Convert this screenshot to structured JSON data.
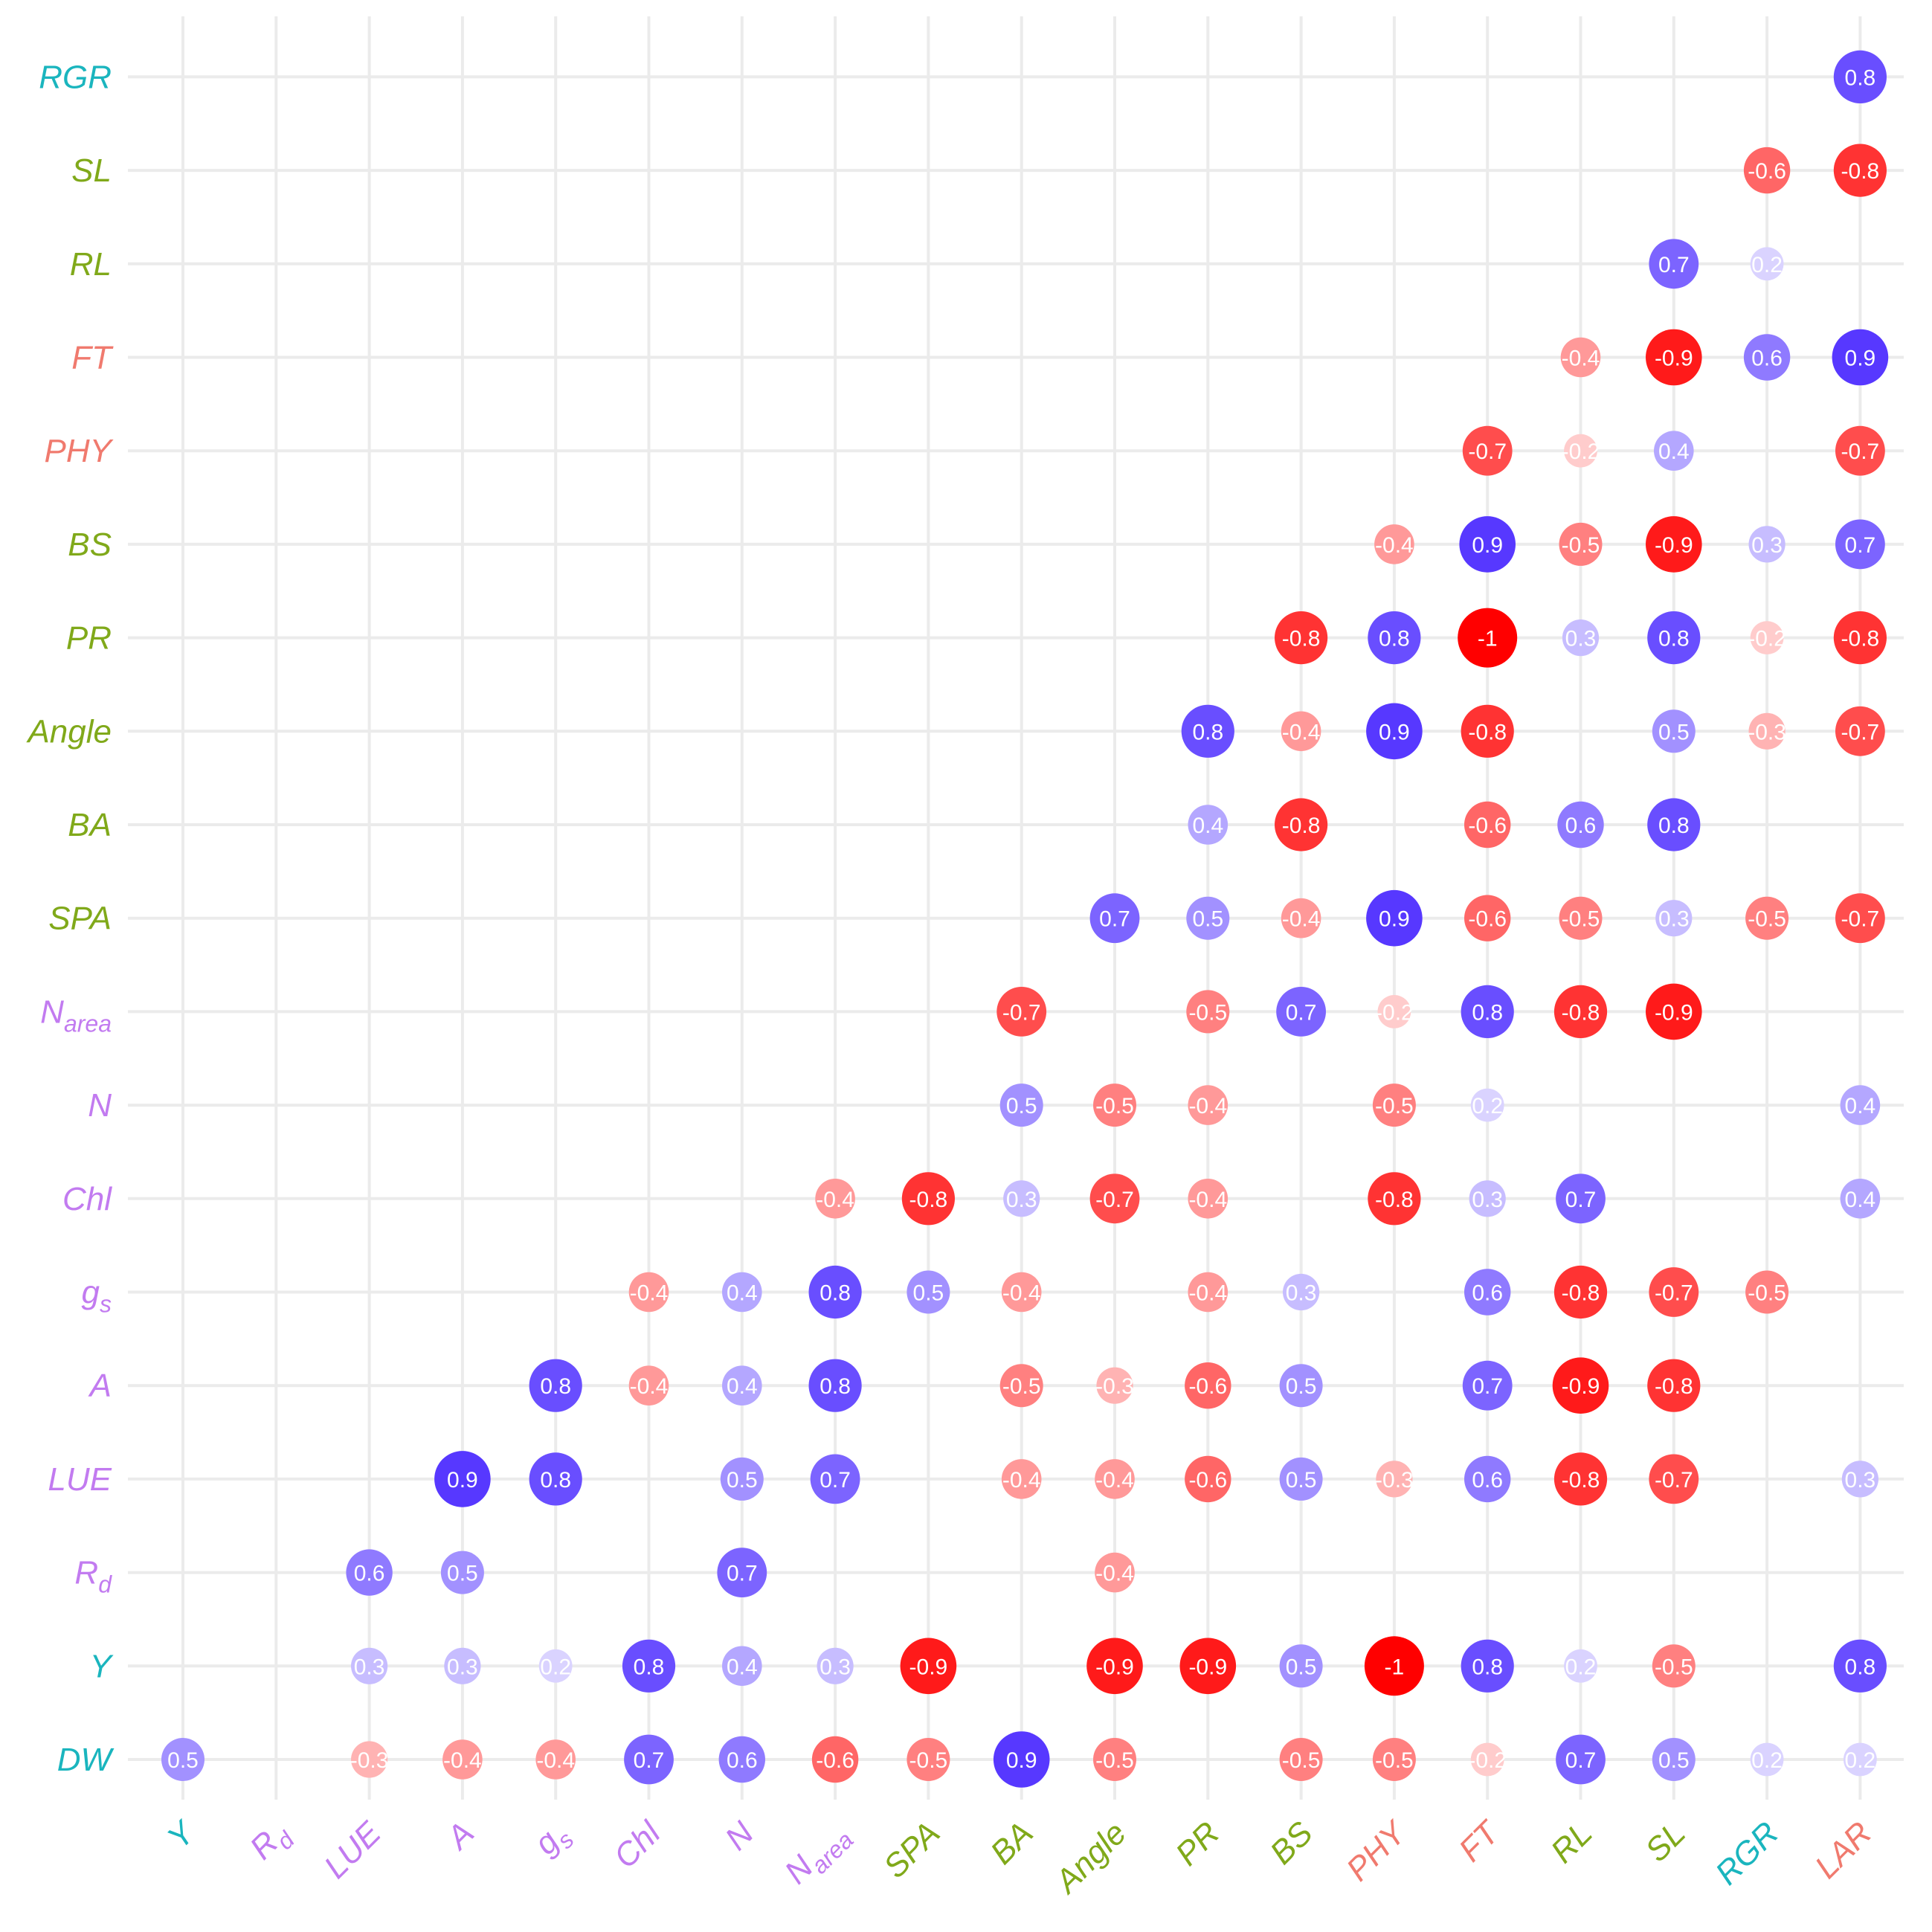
{
  "chart_data": {
    "type": "heatmap",
    "title": "",
    "x_labels": [
      {
        "id": "Y",
        "main": "Y",
        "sub": "",
        "group": "teal"
      },
      {
        "id": "Rd",
        "main": "R",
        "sub": "d",
        "group": "purple"
      },
      {
        "id": "LUE",
        "main": "LUE",
        "sub": "",
        "group": "purple"
      },
      {
        "id": "A",
        "main": "A",
        "sub": "",
        "group": "purple"
      },
      {
        "id": "gs",
        "main": "g",
        "sub": "s",
        "group": "purple"
      },
      {
        "id": "Chl",
        "main": "Chl",
        "sub": "",
        "group": "purple"
      },
      {
        "id": "N",
        "main": "N",
        "sub": "",
        "group": "purple"
      },
      {
        "id": "Narea",
        "main": "N",
        "sub": "area",
        "group": "purple"
      },
      {
        "id": "SPA",
        "main": "SPA",
        "sub": "",
        "group": "green"
      },
      {
        "id": "BA",
        "main": "BA",
        "sub": "",
        "group": "green"
      },
      {
        "id": "Angle",
        "main": "Angle",
        "sub": "",
        "group": "green"
      },
      {
        "id": "PR",
        "main": "PR",
        "sub": "",
        "group": "green"
      },
      {
        "id": "BS",
        "main": "BS",
        "sub": "",
        "group": "green"
      },
      {
        "id": "PHY",
        "main": "PHY",
        "sub": "",
        "group": "salmon"
      },
      {
        "id": "FT",
        "main": "FT",
        "sub": "",
        "group": "salmon"
      },
      {
        "id": "RL",
        "main": "RL",
        "sub": "",
        "group": "green"
      },
      {
        "id": "SL",
        "main": "SL",
        "sub": "",
        "group": "green"
      },
      {
        "id": "RGR",
        "main": "RGR",
        "sub": "",
        "group": "teal"
      },
      {
        "id": "LAR",
        "main": "LAR",
        "sub": "",
        "group": "salmon"
      }
    ],
    "y_labels": [
      {
        "id": "DW",
        "main": "DW",
        "sub": "",
        "group": "teal"
      },
      {
        "id": "Y",
        "main": "Y",
        "sub": "",
        "group": "teal"
      },
      {
        "id": "Rd",
        "main": "R",
        "sub": "d",
        "group": "purple"
      },
      {
        "id": "LUE",
        "main": "LUE",
        "sub": "",
        "group": "purple"
      },
      {
        "id": "A",
        "main": "A",
        "sub": "",
        "group": "purple"
      },
      {
        "id": "gs",
        "main": "g",
        "sub": "s",
        "group": "purple"
      },
      {
        "id": "Chl",
        "main": "Chl",
        "sub": "",
        "group": "purple"
      },
      {
        "id": "N",
        "main": "N",
        "sub": "",
        "group": "purple"
      },
      {
        "id": "Narea",
        "main": "N",
        "sub": "area",
        "group": "purple"
      },
      {
        "id": "SPA",
        "main": "SPA",
        "sub": "",
        "group": "green"
      },
      {
        "id": "BA",
        "main": "BA",
        "sub": "",
        "group": "green"
      },
      {
        "id": "Angle",
        "main": "Angle",
        "sub": "",
        "group": "green"
      },
      {
        "id": "PR",
        "main": "PR",
        "sub": "",
        "group": "green"
      },
      {
        "id": "BS",
        "main": "BS",
        "sub": "",
        "group": "green"
      },
      {
        "id": "PHY",
        "main": "PHY",
        "sub": "",
        "group": "salmon"
      },
      {
        "id": "FT",
        "main": "FT",
        "sub": "",
        "group": "salmon"
      },
      {
        "id": "RL",
        "main": "RL",
        "sub": "",
        "group": "green"
      },
      {
        "id": "SL",
        "main": "SL",
        "sub": "",
        "group": "green"
      },
      {
        "id": "RGR",
        "main": "RGR",
        "sub": "",
        "group": "teal"
      }
    ],
    "group_colors": {
      "teal": "#1ab5be",
      "purple": "#c27bf0",
      "green": "#80a91a",
      "salmon": "#f07a6e"
    },
    "color_scale": {
      "negative": "#ff0000",
      "neutral": "#ffffff",
      "positive": "#4422ff"
    },
    "grid": true,
    "legend": "none",
    "cells": [
      {
        "row": "DW",
        "col": "Y",
        "value": 0.5
      },
      {
        "row": "DW",
        "col": "LUE",
        "value": -0.3
      },
      {
        "row": "DW",
        "col": "A",
        "value": -0.4
      },
      {
        "row": "DW",
        "col": "gs",
        "value": -0.4
      },
      {
        "row": "DW",
        "col": "Chl",
        "value": 0.7
      },
      {
        "row": "DW",
        "col": "N",
        "value": 0.6
      },
      {
        "row": "DW",
        "col": "Narea",
        "value": -0.6
      },
      {
        "row": "DW",
        "col": "SPA",
        "value": -0.5
      },
      {
        "row": "DW",
        "col": "BA",
        "value": 0.9
      },
      {
        "row": "DW",
        "col": "Angle",
        "value": -0.5
      },
      {
        "row": "DW",
        "col": "BS",
        "value": -0.5
      },
      {
        "row": "DW",
        "col": "PHY",
        "value": -0.5
      },
      {
        "row": "DW",
        "col": "FT",
        "value": -0.2
      },
      {
        "row": "DW",
        "col": "RL",
        "value": 0.7
      },
      {
        "row": "DW",
        "col": "SL",
        "value": 0.5
      },
      {
        "row": "DW",
        "col": "RGR",
        "value": 0.2
      },
      {
        "row": "DW",
        "col": "LAR",
        "value": 0.2
      },
      {
        "row": "Y",
        "col": "LUE",
        "value": 0.3
      },
      {
        "row": "Y",
        "col": "A",
        "value": 0.3
      },
      {
        "row": "Y",
        "col": "gs",
        "value": 0.2
      },
      {
        "row": "Y",
        "col": "Chl",
        "value": 0.8
      },
      {
        "row": "Y",
        "col": "N",
        "value": 0.4
      },
      {
        "row": "Y",
        "col": "Narea",
        "value": 0.3
      },
      {
        "row": "Y",
        "col": "SPA",
        "value": -0.9
      },
      {
        "row": "Y",
        "col": "Angle",
        "value": -0.9
      },
      {
        "row": "Y",
        "col": "PR",
        "value": -0.9
      },
      {
        "row": "Y",
        "col": "BS",
        "value": 0.5
      },
      {
        "row": "Y",
        "col": "PHY",
        "value": -1
      },
      {
        "row": "Y",
        "col": "FT",
        "value": 0.8
      },
      {
        "row": "Y",
        "col": "RL",
        "value": 0.2
      },
      {
        "row": "Y",
        "col": "SL",
        "value": -0.5
      },
      {
        "row": "Y",
        "col": "LAR",
        "value": 0.8
      },
      {
        "row": "Rd",
        "col": "LUE",
        "value": 0.6
      },
      {
        "row": "Rd",
        "col": "A",
        "value": 0.5
      },
      {
        "row": "Rd",
        "col": "N",
        "value": 0.7
      },
      {
        "row": "Rd",
        "col": "Angle",
        "value": -0.4
      },
      {
        "row": "LUE",
        "col": "A",
        "value": 0.9
      },
      {
        "row": "LUE",
        "col": "gs",
        "value": 0.8
      },
      {
        "row": "LUE",
        "col": "N",
        "value": 0.5
      },
      {
        "row": "LUE",
        "col": "Narea",
        "value": 0.7
      },
      {
        "row": "LUE",
        "col": "BA",
        "value": -0.4
      },
      {
        "row": "LUE",
        "col": "Angle",
        "value": -0.4
      },
      {
        "row": "LUE",
        "col": "PR",
        "value": -0.6
      },
      {
        "row": "LUE",
        "col": "BS",
        "value": 0.5
      },
      {
        "row": "LUE",
        "col": "PHY",
        "value": -0.3
      },
      {
        "row": "LUE",
        "col": "FT",
        "value": 0.6
      },
      {
        "row": "LUE",
        "col": "RL",
        "value": -0.8
      },
      {
        "row": "LUE",
        "col": "SL",
        "value": -0.7
      },
      {
        "row": "LUE",
        "col": "LAR",
        "value": 0.3
      },
      {
        "row": "A",
        "col": "gs",
        "value": 0.8
      },
      {
        "row": "A",
        "col": "Chl",
        "value": -0.4
      },
      {
        "row": "A",
        "col": "N",
        "value": 0.4
      },
      {
        "row": "A",
        "col": "Narea",
        "value": 0.8
      },
      {
        "row": "A",
        "col": "BA",
        "value": -0.5
      },
      {
        "row": "A",
        "col": "Angle",
        "value": -0.3
      },
      {
        "row": "A",
        "col": "PR",
        "value": -0.6
      },
      {
        "row": "A",
        "col": "BS",
        "value": 0.5
      },
      {
        "row": "A",
        "col": "FT",
        "value": 0.7
      },
      {
        "row": "A",
        "col": "RL",
        "value": -0.9
      },
      {
        "row": "A",
        "col": "SL",
        "value": -0.8
      },
      {
        "row": "gs",
        "col": "Chl",
        "value": -0.4
      },
      {
        "row": "gs",
        "col": "N",
        "value": 0.4
      },
      {
        "row": "gs",
        "col": "Narea",
        "value": 0.8
      },
      {
        "row": "gs",
        "col": "SPA",
        "value": 0.5
      },
      {
        "row": "gs",
        "col": "BA",
        "value": -0.4
      },
      {
        "row": "gs",
        "col": "PR",
        "value": -0.4
      },
      {
        "row": "gs",
        "col": "BS",
        "value": 0.3
      },
      {
        "row": "gs",
        "col": "FT",
        "value": 0.6
      },
      {
        "row": "gs",
        "col": "RL",
        "value": -0.8
      },
      {
        "row": "gs",
        "col": "SL",
        "value": -0.7
      },
      {
        "row": "gs",
        "col": "RGR",
        "value": -0.5
      },
      {
        "row": "Chl",
        "col": "Narea",
        "value": -0.4
      },
      {
        "row": "Chl",
        "col": "SPA",
        "value": -0.8
      },
      {
        "row": "Chl",
        "col": "BA",
        "value": 0.3
      },
      {
        "row": "Chl",
        "col": "Angle",
        "value": -0.7
      },
      {
        "row": "Chl",
        "col": "PR",
        "value": -0.4
      },
      {
        "row": "Chl",
        "col": "PHY",
        "value": -0.8
      },
      {
        "row": "Chl",
        "col": "FT",
        "value": 0.3
      },
      {
        "row": "Chl",
        "col": "RL",
        "value": 0.7
      },
      {
        "row": "Chl",
        "col": "LAR",
        "value": 0.4
      },
      {
        "row": "N",
        "col": "BA",
        "value": 0.5
      },
      {
        "row": "N",
        "col": "Angle",
        "value": -0.5
      },
      {
        "row": "N",
        "col": "PR",
        "value": -0.4
      },
      {
        "row": "N",
        "col": "PHY",
        "value": -0.5
      },
      {
        "row": "N",
        "col": "FT",
        "value": 0.2
      },
      {
        "row": "N",
        "col": "LAR",
        "value": 0.4
      },
      {
        "row": "Narea",
        "col": "BA",
        "value": -0.7
      },
      {
        "row": "Narea",
        "col": "PR",
        "value": -0.5
      },
      {
        "row": "Narea",
        "col": "BS",
        "value": 0.7
      },
      {
        "row": "Narea",
        "col": "PHY",
        "value": -0.2
      },
      {
        "row": "Narea",
        "col": "FT",
        "value": 0.8
      },
      {
        "row": "Narea",
        "col": "RL",
        "value": -0.8
      },
      {
        "row": "Narea",
        "col": "SL",
        "value": -0.9
      },
      {
        "row": "SPA",
        "col": "Angle",
        "value": 0.7
      },
      {
        "row": "SPA",
        "col": "PR",
        "value": 0.5
      },
      {
        "row": "SPA",
        "col": "BS",
        "value": -0.4
      },
      {
        "row": "SPA",
        "col": "PHY",
        "value": 0.9
      },
      {
        "row": "SPA",
        "col": "FT",
        "value": -0.6
      },
      {
        "row": "SPA",
        "col": "RL",
        "value": -0.5
      },
      {
        "row": "SPA",
        "col": "SL",
        "value": 0.3
      },
      {
        "row": "SPA",
        "col": "RGR",
        "value": -0.5
      },
      {
        "row": "SPA",
        "col": "LAR",
        "value": -0.7
      },
      {
        "row": "BA",
        "col": "PR",
        "value": 0.4
      },
      {
        "row": "BA",
        "col": "BS",
        "value": -0.8
      },
      {
        "row": "BA",
        "col": "FT",
        "value": -0.6
      },
      {
        "row": "BA",
        "col": "RL",
        "value": 0.6
      },
      {
        "row": "BA",
        "col": "SL",
        "value": 0.8
      },
      {
        "row": "Angle",
        "col": "PR",
        "value": 0.8
      },
      {
        "row": "Angle",
        "col": "BS",
        "value": -0.4
      },
      {
        "row": "Angle",
        "col": "PHY",
        "value": 0.9
      },
      {
        "row": "Angle",
        "col": "FT",
        "value": -0.8
      },
      {
        "row": "Angle",
        "col": "SL",
        "value": 0.5
      },
      {
        "row": "Angle",
        "col": "RGR",
        "value": -0.3
      },
      {
        "row": "Angle",
        "col": "LAR",
        "value": -0.7
      },
      {
        "row": "PR",
        "col": "BS",
        "value": -0.8
      },
      {
        "row": "PR",
        "col": "PHY",
        "value": 0.8
      },
      {
        "row": "PR",
        "col": "FT",
        "value": -1
      },
      {
        "row": "PR",
        "col": "RL",
        "value": 0.3
      },
      {
        "row": "PR",
        "col": "SL",
        "value": 0.8
      },
      {
        "row": "PR",
        "col": "RGR",
        "value": -0.2
      },
      {
        "row": "PR",
        "col": "LAR",
        "value": -0.8
      },
      {
        "row": "BS",
        "col": "PHY",
        "value": -0.4
      },
      {
        "row": "BS",
        "col": "FT",
        "value": 0.9
      },
      {
        "row": "BS",
        "col": "RL",
        "value": -0.5
      },
      {
        "row": "BS",
        "col": "SL",
        "value": -0.9
      },
      {
        "row": "BS",
        "col": "RGR",
        "value": 0.3
      },
      {
        "row": "BS",
        "col": "LAR",
        "value": 0.7
      },
      {
        "row": "PHY",
        "col": "FT",
        "value": -0.7
      },
      {
        "row": "PHY",
        "col": "RL",
        "value": -0.2
      },
      {
        "row": "PHY",
        "col": "SL",
        "value": 0.4
      },
      {
        "row": "PHY",
        "col": "LAR",
        "value": -0.7
      },
      {
        "row": "FT",
        "col": "RL",
        "value": -0.4
      },
      {
        "row": "FT",
        "col": "SL",
        "value": -0.9
      },
      {
        "row": "FT",
        "col": "RGR",
        "value": 0.6
      },
      {
        "row": "FT",
        "col": "LAR",
        "value": 0.9
      },
      {
        "row": "RL",
        "col": "SL",
        "value": 0.7
      },
      {
        "row": "RL",
        "col": "RGR",
        "value": 0.2
      },
      {
        "row": "SL",
        "col": "RGR",
        "value": -0.6
      },
      {
        "row": "SL",
        "col": "LAR",
        "value": -0.8
      },
      {
        "row": "RGR",
        "col": "LAR",
        "value": 0.8
      }
    ]
  }
}
